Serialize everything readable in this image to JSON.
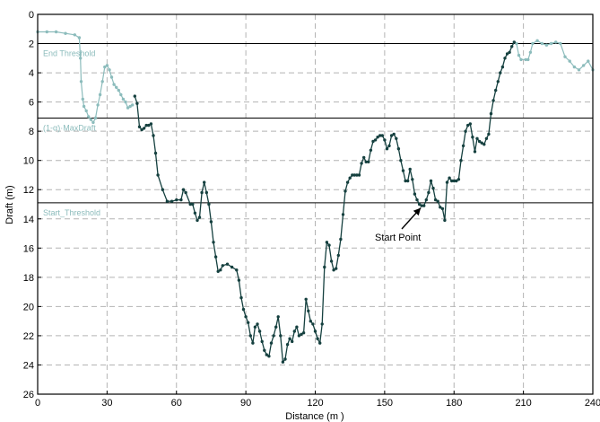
{
  "chart_data": {
    "type": "line",
    "title": "",
    "xlabel": "Distance (m )",
    "ylabel": "Draft (m)",
    "xlim": [
      0,
      240
    ],
    "ylim": [
      0,
      26
    ],
    "y_inverted": true,
    "x_ticks": [
      0,
      30,
      60,
      90,
      120,
      150,
      180,
      210,
      240
    ],
    "y_ticks": [
      0,
      2,
      4,
      6,
      8,
      10,
      12,
      14,
      16,
      18,
      20,
      22,
      24,
      26
    ],
    "grid": true,
    "legend": "none",
    "colors": {
      "dark": "#15403f",
      "light": "#8cbcbc",
      "threshold": "#000000",
      "grid": "#b4b4b4"
    },
    "thresholds": [
      {
        "name": "End Threshold",
        "y": 2.0
      },
      {
        "name": "(1-α)·MaxDraft",
        "y": 7.1
      },
      {
        "name": "Start_Threshold",
        "y": 12.9
      }
    ],
    "annotation": {
      "text": "Start Point",
      "point": [
        166,
        13.0
      ]
    },
    "series": [
      {
        "style": "light",
        "segments": [
          [
            [
              0,
              1.2
            ],
            [
              4,
              1.2
            ],
            [
              8,
              1.2
            ],
            [
              12,
              1.3
            ],
            [
              16,
              1.4
            ],
            [
              18,
              1.6
            ],
            [
              18.5,
              3
            ],
            [
              18.8,
              4.6
            ],
            [
              19.5,
              5.8
            ],
            [
              20,
              6.3
            ],
            [
              21,
              6.6
            ],
            [
              22,
              7
            ],
            [
              23,
              7.2
            ],
            [
              24,
              7.4
            ],
            [
              25,
              7.1
            ],
            [
              26,
              6.2
            ],
            [
              27,
              5.5
            ],
            [
              28,
              4.6
            ],
            [
              29,
              3.6
            ],
            [
              30,
              3.5
            ],
            [
              31,
              3.8
            ],
            [
              32,
              4.3
            ],
            [
              33,
              4.8
            ],
            [
              34,
              5.0
            ],
            [
              35,
              5.2
            ],
            [
              36,
              5.5
            ],
            [
              37,
              5.8
            ],
            [
              38,
              6.0
            ],
            [
              39,
              6.4
            ],
            [
              40,
              6.3
            ],
            [
              41,
              6.2
            ]
          ],
          [
            [
              207,
              2.0
            ],
            [
              208,
              2.8
            ],
            [
              209,
              3.1
            ],
            [
              211,
              3.1
            ],
            [
              212,
              3.1
            ],
            [
              213,
              2.6
            ],
            [
              214,
              2.0
            ],
            [
              216,
              1.8
            ],
            [
              218,
              2.0
            ],
            [
              220,
              2.1
            ],
            [
              222,
              2.0
            ],
            [
              224,
              1.9
            ],
            [
              226,
              2.0
            ],
            [
              228,
              2.9
            ],
            [
              230,
              3.2
            ],
            [
              232,
              3.6
            ],
            [
              234,
              3.8
            ],
            [
              236,
              3.5
            ],
            [
              238,
              3.2
            ],
            [
              240,
              3.8
            ]
          ]
        ]
      },
      {
        "style": "dark",
        "segments": [
          [
            [
              42,
              5.6
            ],
            [
              43,
              6.1
            ],
            [
              44,
              7.7
            ],
            [
              45,
              7.9
            ],
            [
              46,
              7.8
            ],
            [
              47,
              7.6
            ],
            [
              48,
              7.6
            ],
            [
              49,
              7.5
            ],
            [
              50,
              8.3
            ],
            [
              51,
              9.5
            ],
            [
              52,
              11
            ],
            [
              54,
              12.0
            ],
            [
              56,
              12.8
            ],
            [
              58,
              12.8
            ],
            [
              60,
              12.7
            ],
            [
              62,
              12.7
            ],
            [
              63,
              12.0
            ],
            [
              64,
              12.2
            ],
            [
              66,
              13.0
            ],
            [
              67,
              13.0
            ],
            [
              68,
              13.6
            ],
            [
              69,
              14.1
            ],
            [
              70,
              13.9
            ],
            [
              71,
              12.2
            ],
            [
              72,
              11.5
            ],
            [
              73,
              12.2
            ],
            [
              74,
              13.0
            ],
            [
              75,
              14.2
            ],
            [
              76,
              15.6
            ],
            [
              77,
              16.6
            ],
            [
              78,
              17.6
            ],
            [
              79,
              17.5
            ],
            [
              80,
              17.2
            ],
            [
              82,
              17.1
            ],
            [
              84,
              17.3
            ],
            [
              86,
              17.5
            ],
            [
              87,
              18.2
            ],
            [
              88,
              19.4
            ],
            [
              89,
              20.2
            ],
            [
              90,
              20.7
            ],
            [
              91,
              21.1
            ],
            [
              92,
              22.0
            ],
            [
              93,
              22.5
            ],
            [
              94,
              21.4
            ],
            [
              95,
              21.2
            ],
            [
              96,
              21.7
            ],
            [
              97,
              22.4
            ],
            [
              98,
              23.0
            ],
            [
              99,
              23.3
            ],
            [
              100,
              23.4
            ],
            [
              101,
              22.5
            ],
            [
              102,
              22.0
            ],
            [
              103,
              21.4
            ],
            [
              104,
              20.7
            ],
            [
              105,
              22.0
            ],
            [
              106,
              23.8
            ],
            [
              107,
              23.6
            ],
            [
              108,
              22.6
            ],
            [
              109,
              22.2
            ],
            [
              110,
              22.4
            ],
            [
              111,
              21.7
            ],
            [
              112,
              21.4
            ],
            [
              113,
              22.0
            ],
            [
              114,
              21.9
            ],
            [
              115,
              21.8
            ],
            [
              116,
              19.5
            ],
            [
              117,
              20.3
            ],
            [
              118,
              21.0
            ],
            [
              119,
              21.2
            ],
            [
              120,
              21.7
            ],
            [
              121,
              22.2
            ],
            [
              122,
              22.5
            ],
            [
              123,
              21.2
            ],
            [
              124,
              17.3
            ],
            [
              125,
              15.6
            ],
            [
              126,
              15.8
            ],
            [
              127,
              16.9
            ],
            [
              128,
              17.5
            ],
            [
              129,
              17.4
            ],
            [
              130,
              16.5
            ],
            [
              131,
              15.4
            ],
            [
              132,
              13.7
            ],
            [
              133,
              12.1
            ],
            [
              134,
              11.5
            ],
            [
              135,
              11.2
            ],
            [
              136,
              11.0
            ],
            [
              137,
              11.0
            ],
            [
              138,
              11.0
            ],
            [
              139,
              11.0
            ],
            [
              140,
              10.2
            ],
            [
              141,
              9.8
            ],
            [
              142,
              10.1
            ],
            [
              143,
              10.1
            ],
            [
              144,
              9.3
            ],
            [
              145,
              8.7
            ],
            [
              146,
              8.6
            ],
            [
              147,
              8.4
            ],
            [
              148,
              8.3
            ],
            [
              149,
              8.3
            ],
            [
              150,
              8.6
            ],
            [
              151,
              9.2
            ],
            [
              152,
              9.0
            ],
            [
              153,
              8.3
            ],
            [
              154,
              8.2
            ],
            [
              155,
              8.5
            ],
            [
              156,
              9.2
            ],
            [
              157,
              10.0
            ],
            [
              158,
              10.7
            ],
            [
              159,
              11.4
            ],
            [
              160,
              11.4
            ],
            [
              161,
              10.6
            ],
            [
              162,
              11.3
            ],
            [
              163,
              12.3
            ],
            [
              164,
              12.7
            ],
            [
              165,
              13.0
            ],
            [
              166,
              13.1
            ],
            [
              167,
              13.1
            ],
            [
              168,
              12.7
            ],
            [
              169,
              12.2
            ],
            [
              170,
              11.4
            ],
            [
              171,
              11.9
            ],
            [
              172,
              12.7
            ],
            [
              173,
              12.8
            ],
            [
              174,
              13.2
            ],
            [
              175,
              13.3
            ],
            [
              176,
              14.1
            ],
            [
              177,
              11.5
            ],
            [
              178,
              11.2
            ],
            [
              179,
              11.4
            ],
            [
              180,
              11.4
            ],
            [
              181,
              11.4
            ],
            [
              182,
              11.3
            ],
            [
              183,
              10.0
            ],
            [
              184,
              9.0
            ],
            [
              185,
              8.0
            ],
            [
              186,
              7.6
            ],
            [
              187,
              7.5
            ],
            [
              188,
              8.4
            ],
            [
              189,
              9.4
            ],
            [
              190,
              8.5
            ],
            [
              191,
              8.7
            ],
            [
              192,
              8.8
            ],
            [
              193,
              8.9
            ],
            [
              194,
              8.5
            ],
            [
              195,
              8.2
            ],
            [
              196,
              6.8
            ],
            [
              197,
              5.9
            ],
            [
              198,
              5.2
            ],
            [
              199,
              4.6
            ],
            [
              200,
              4.0
            ],
            [
              201,
              3.6
            ],
            [
              202,
              3.0
            ],
            [
              203,
              2.7
            ],
            [
              204,
              2.6
            ],
            [
              205,
              2.2
            ],
            [
              206,
              1.9
            ]
          ]
        ]
      }
    ]
  }
}
